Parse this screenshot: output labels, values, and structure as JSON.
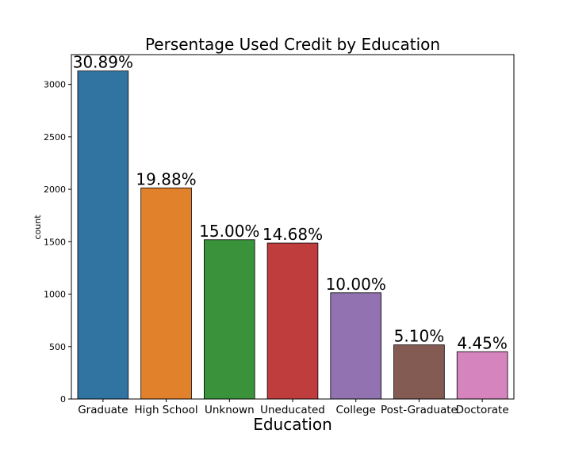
{
  "chart_data": {
    "type": "bar",
    "title": "Persentage Used Credit by Education",
    "xlabel": "Education",
    "ylabel": "count",
    "categories": [
      "Graduate",
      "High School",
      "Unknown",
      "Uneducated",
      "College",
      "Post-Graduate",
      "Doctorate"
    ],
    "values": [
      3128,
      2013,
      1519,
      1487,
      1013,
      516,
      451
    ],
    "data_labels": [
      "30.89%",
      "19.88%",
      "15.00%",
      "14.68%",
      "10.00%",
      "5.10%",
      "4.45%"
    ],
    "colors": [
      "#3274a1",
      "#e1812c",
      "#3a923a",
      "#c03d3e",
      "#9372b2",
      "#845b53",
      "#d684bd"
    ],
    "yticks": [
      0,
      500,
      1000,
      1500,
      2000,
      2500,
      3000
    ],
    "ylim": [
      0,
      3284
    ],
    "grid": false,
    "legend": "none"
  }
}
